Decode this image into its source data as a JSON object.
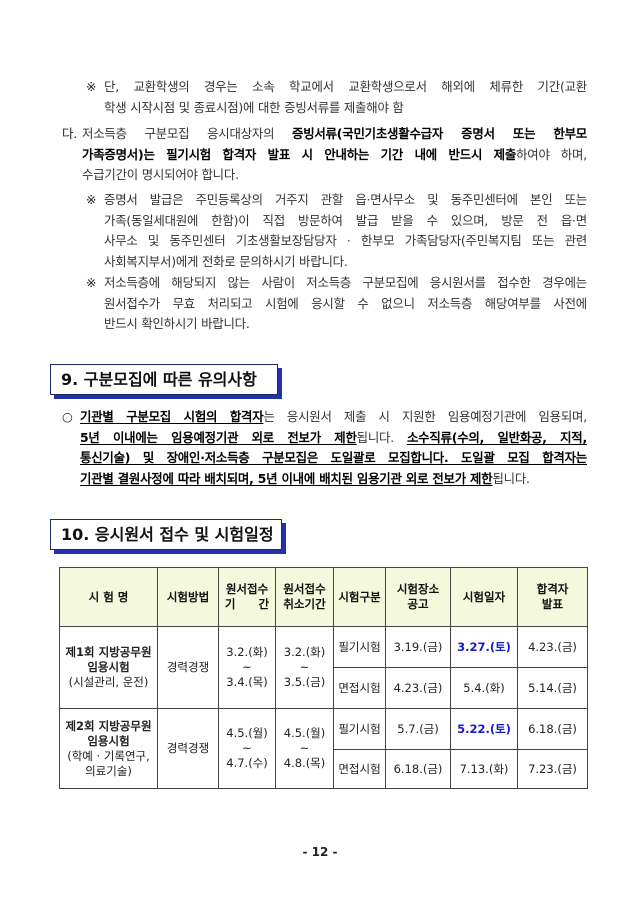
{
  "paragraphs": [
    {
      "marker": "※",
      "lines": [
        [
          {
            "t": "단, 교환학생의 경우는 소속 학교에서 교환학생으로서 해외에 체류한 기간(교환",
            "s": "n"
          }
        ],
        [
          {
            "t": "학생 시작시점 및 종료시점)에 대한 증빙서류를 제출해야 함",
            "s": "n"
          }
        ]
      ]
    },
    {
      "marker": "다.",
      "lines": [
        [
          {
            "t": "저소득층 구분모집 응시대상자의 ",
            "s": "n"
          },
          {
            "t": "증빙서류(국민기초생활수급자 증명서 또는 한부모",
            "s": "b"
          }
        ],
        [
          {
            "t": "가족증명서)는 필기시험 합격자 발표 시 안내하는 기간 내에 반드시 제출",
            "s": "b"
          },
          {
            "t": "하여야 하며,",
            "s": "n"
          }
        ],
        [
          {
            "t": "수급기간이 명시되어야 합니다.",
            "s": "n"
          }
        ]
      ]
    },
    {
      "marker": "※",
      "lines": [
        [
          {
            "t": "증명서 발급은 주민등록상의 거주지 관할 읍·면사무소 및 동주민센터에 본인 또는",
            "s": "n"
          }
        ],
        [
          {
            "t": "가족(동일세대원에 한함)이 직접 방문하여 발급 받을 수 있으며, 방문 전 읍·면",
            "s": "n"
          }
        ],
        [
          {
            "t": "사무소 및 동주민센터 기초생활보장담당자 · 한부모 가족담당자(주민복지팀 또는 관련",
            "s": "n"
          }
        ],
        [
          {
            "t": "사회복지부서)에게 전화로 문의하시기 바랍니다.",
            "s": "n"
          }
        ]
      ]
    },
    {
      "marker": "※",
      "lines": [
        [
          {
            "t": "저소득층에 해당되지 않는 사람이 저소득층 구분모집에 응시원서를 접수한 경우에는",
            "s": "n"
          }
        ],
        [
          {
            "t": "원서접수가 무효 처리되고 시험에 응시할 수 없으니 저소득층 해당여부를 사전에",
            "s": "n"
          }
        ],
        [
          {
            "t": "반드시 확인하시기 바랍니다.",
            "s": "n"
          }
        ]
      ]
    }
  ],
  "section9": {
    "title": "9. 구분모집에 따른 유의사항",
    "bullet": {
      "marker": "○",
      "lines": [
        [
          {
            "t": "기관별 구분모집 시험의 합격자",
            "s": "bu"
          },
          {
            "t": "는 응시원서 제출 시 지원한 임용예정기관에 임용되며,",
            "s": "n"
          }
        ],
        [
          {
            "t": "5년 이내에는 임용예정기관 외로 전보가 제한",
            "s": "bu"
          },
          {
            "t": "됩니다. ",
            "s": "n"
          },
          {
            "t": "소수직류(수의, 일반화공, 지적,",
            "s": "bu"
          }
        ],
        [
          {
            "t": "통신기술) 및 장애인·저소득층 구분모집은 도일괄로 모집합니다. 도일괄 모집 합격자는",
            "s": "bu"
          }
        ],
        [
          {
            "t": "기관별 결원사정에 따라 배치되며, 5년 이내에 배치된 임용기관 외로 전보가 제한",
            "s": "bu"
          },
          {
            "t": "됩니다.",
            "s": "n"
          }
        ]
      ]
    }
  },
  "section10": {
    "title": "10. 응시원서 접수 및 시험일정",
    "headers": [
      "시 험 명",
      "시험방법",
      "원서접수\n기　　간",
      "원서접수\n취소기간",
      "시험구분",
      "시험장소\n공고",
      "시험일자",
      "합격자\n발표"
    ],
    "exams": [
      {
        "name": "제1회 지방공무원\n임용시험",
        "sub": "(시설관리, 운전)",
        "method": "경력경쟁",
        "apply": "3.2.(화)\n~\n3.4.(목)",
        "cancel": "3.2.(화)\n~\n3.5.(금)",
        "stages": [
          {
            "type": "필기시험",
            "notice": "3.19.(금)",
            "date": "3.27.(토)",
            "highlight": true,
            "result": "4.23.(금)"
          },
          {
            "type": "면접시험",
            "notice": "4.23.(금)",
            "date": "5.4.(화)",
            "highlight": false,
            "result": "5.14.(금)"
          }
        ]
      },
      {
        "name": "제2회 지방공무원\n임용시험",
        "sub": "(학예 · 기록연구,\n의료기술)",
        "method": "경력경쟁",
        "apply": "4.5.(월)\n~\n4.7.(수)",
        "cancel": "4.5.(월)\n~\n4.8.(목)",
        "stages": [
          {
            "type": "필기시험",
            "notice": "5.7.(금)",
            "date": "5.22.(토)",
            "highlight": true,
            "result": "6.18.(금)"
          },
          {
            "type": "면접시험",
            "notice": "6.18.(금)",
            "date": "7.13.(화)",
            "highlight": false,
            "result": "7.23.(금)"
          }
        ]
      }
    ]
  },
  "page_number": "- 12 -",
  "colors": {
    "header_bg": "#f4f8dc",
    "highlight_date": "#1a1ad0",
    "section_border": "#1c2a6e",
    "section_shadow": "#2233aa"
  }
}
